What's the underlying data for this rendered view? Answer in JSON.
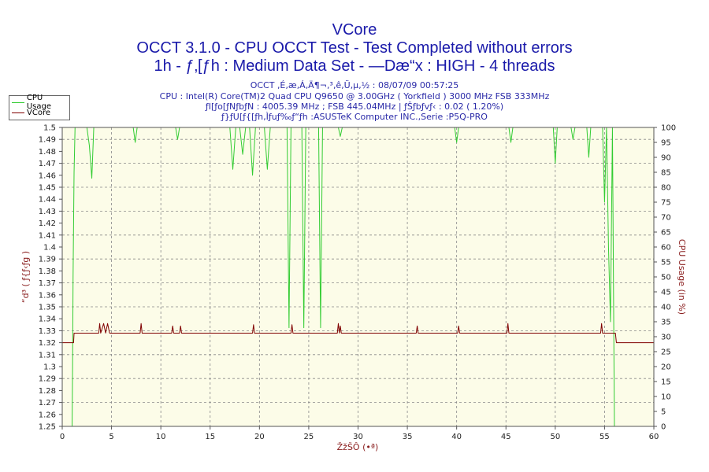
{
  "titles": {
    "line1": "VCore",
    "line2": "OCCT 3.1.0 - CPU OCCT Test - Test Completed without errors",
    "line3": "1h - ƒ‚[ƒh : Medium Data Set - —Dæ“x : HIGH - 4 threads"
  },
  "info": {
    "line1": "OCCT ‚É‚æ‚Á‚Ä¶¬‚³‚ê‚Ü‚µ‚½ : 08/07/09 00:57:25",
    "line2": "CPU : Intel(R) Core(TM)2 Quad CPU Q9650 @ 3.00GHz ( Yorkfield ) 3000 MHz FSB 333MHz",
    "line3": "ƒI[ƒo[ƒNƒbƒN : 4005.39 MHz ; FSB 445.04MHz | ƒŠƒbƒvƒ‹ : 0.02 ( 1.20%)",
    "line4": "ƒ}ƒU[ƒ{[ƒh‚Ìƒuƒ‰ƒ“ƒh :ASUSTeK Computer INC.,Serie :P5Q-PRO"
  },
  "chart_data": {
    "type": "line",
    "xlabel": "ŽžŠÔ (•ª)",
    "ylabel_left": "“d³ ( ƒ{ƒ‹ƒg )",
    "ylabel_right": "CPU Usage (in %)",
    "xlim": [
      0,
      60
    ],
    "ylim_left": [
      1.25,
      1.5
    ],
    "ylim_right": [
      0,
      100
    ],
    "x_ticks": [
      0,
      5,
      10,
      15,
      20,
      25,
      30,
      35,
      40,
      45,
      50,
      55,
      60
    ],
    "y_left_ticks": [
      1.25,
      1.26,
      1.27,
      1.28,
      1.29,
      1.3,
      1.31,
      1.32,
      1.33,
      1.34,
      1.35,
      1.36,
      1.37,
      1.38,
      1.39,
      1.4,
      1.41,
      1.42,
      1.43,
      1.44,
      1.45,
      1.46,
      1.47,
      1.48,
      1.49,
      1.5
    ],
    "y_right_ticks": [
      0,
      5,
      10,
      15,
      20,
      25,
      30,
      35,
      40,
      45,
      50,
      55,
      60,
      65,
      70,
      75,
      80,
      85,
      90,
      95,
      100
    ],
    "grid": true,
    "legend_position": "top-left",
    "series": [
      {
        "name": "CPU Usage",
        "axis": "right",
        "color": "#33cc33",
        "x": [
          0,
          1.0,
          1.05,
          1.1,
          1.2,
          1.3,
          2.5,
          2.75,
          3.0,
          3.2,
          3.5,
          7.2,
          7.4,
          7.6,
          11.5,
          11.7,
          11.9,
          17.0,
          17.3,
          17.6,
          18.0,
          18.3,
          18.6,
          19.0,
          19.3,
          19.6,
          20.5,
          20.8,
          21.1,
          22.8,
          23.0,
          23.2,
          24.3,
          24.5,
          24.7,
          26.0,
          26.2,
          26.4,
          26.6,
          28.0,
          28.2,
          28.4,
          39.8,
          40.0,
          40.2,
          45.3,
          45.5,
          45.7,
          49.8,
          50.0,
          50.2,
          51.6,
          51.8,
          52.0,
          53.2,
          53.4,
          53.6,
          54.8,
          55.0,
          55.2,
          55.4,
          55.6,
          55.8,
          56.0,
          56.1,
          56.2,
          60
        ],
        "y": [
          0,
          0,
          20,
          50,
          85,
          100,
          100,
          94,
          83,
          100,
          100,
          100,
          95,
          100,
          100,
          96,
          100,
          100,
          86,
          100,
          100,
          91,
          100,
          100,
          84,
          100,
          100,
          86,
          100,
          100,
          33,
          100,
          100,
          33,
          100,
          100,
          33,
          100,
          100,
          100,
          97,
          100,
          100,
          95,
          100,
          100,
          95,
          100,
          100,
          88,
          100,
          100,
          96,
          100,
          100,
          90,
          100,
          100,
          75,
          100,
          60,
          35,
          100,
          0,
          0,
          0,
          0
        ]
      },
      {
        "name": "VCore",
        "axis": "left",
        "color": "#800000",
        "x": [
          0,
          1.15,
          1.2,
          3.7,
          3.8,
          3.9,
          4.2,
          4.4,
          4.6,
          4.8,
          7.9,
          8.0,
          8.1,
          11.1,
          11.2,
          11.3,
          11.9,
          12.0,
          12.1,
          19.3,
          19.4,
          19.5,
          23.2,
          23.3,
          23.4,
          27.9,
          28.0,
          28.1,
          28.2,
          28.3,
          35.9,
          36.0,
          36.1,
          40.1,
          40.2,
          40.3,
          45.1,
          45.2,
          45.3,
          54.6,
          54.7,
          54.8,
          56.1,
          56.2,
          60
        ],
        "y": [
          1.32,
          1.32,
          1.328,
          1.328,
          1.336,
          1.328,
          1.336,
          1.328,
          1.336,
          1.328,
          1.328,
          1.336,
          1.328,
          1.328,
          1.334,
          1.328,
          1.328,
          1.334,
          1.328,
          1.328,
          1.335,
          1.328,
          1.328,
          1.335,
          1.328,
          1.328,
          1.336,
          1.328,
          1.334,
          1.328,
          1.328,
          1.334,
          1.328,
          1.328,
          1.334,
          1.328,
          1.328,
          1.336,
          1.328,
          1.328,
          1.336,
          1.328,
          1.328,
          1.32,
          1.32
        ]
      }
    ]
  }
}
